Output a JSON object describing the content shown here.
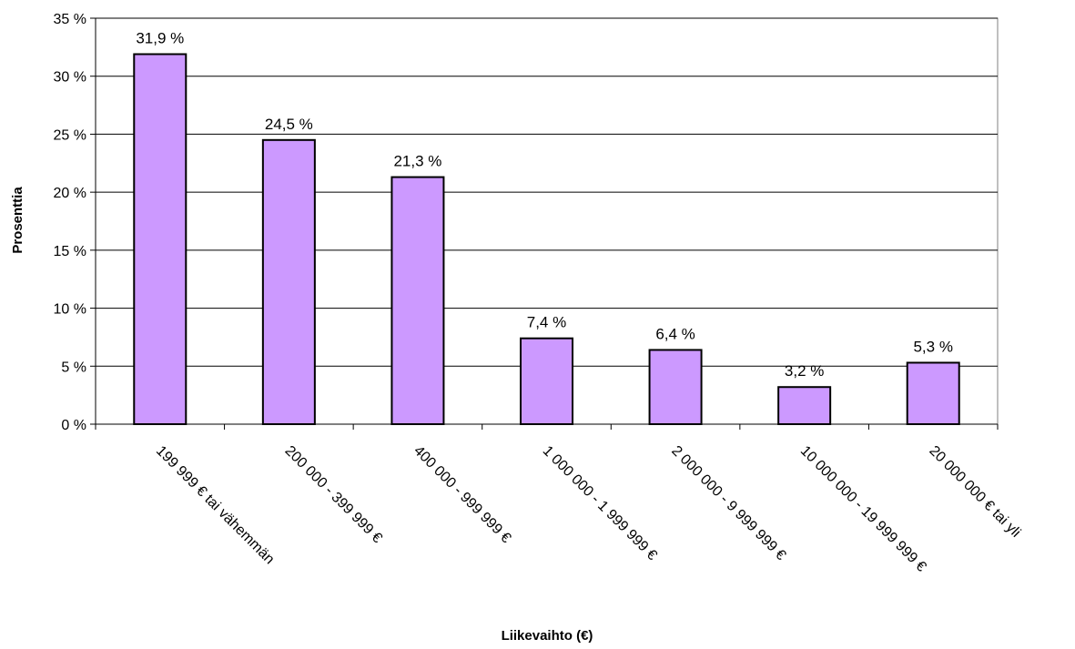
{
  "chart_data": {
    "type": "bar",
    "title": "",
    "xlabel": "Liikevaihto (€)",
    "ylabel": "Prosenttia",
    "ylim": [
      0,
      35
    ],
    "yticks": [
      0,
      5,
      10,
      15,
      20,
      25,
      30,
      35
    ],
    "ytick_labels": [
      "0 %",
      "5 %",
      "10 %",
      "15 %",
      "20 %",
      "25 %",
      "30 %",
      "35 %"
    ],
    "grid": true,
    "categories": [
      "199 999 € tai vähemmän",
      "200 000 - 399 999 €",
      "400 000 - 999 999 €",
      "1 000 000 - 1 999 999 €",
      "2 000 000 - 9 999 999 €",
      "10 000 000 - 19 999 999 €",
      "20 000 000 € tai yli"
    ],
    "values": [
      31.9,
      24.5,
      21.3,
      7.4,
      6.4,
      3.2,
      5.3
    ],
    "value_labels": [
      "31,9 %",
      "24,5 %",
      "21,3 %",
      "7,4 %",
      "6,4 %",
      "3,2 %",
      "5,3 %"
    ],
    "colors": {
      "bar_fill": "#cc99ff",
      "bar_stroke": "#000000",
      "grid": "#000000",
      "plot_border": "#808080"
    }
  }
}
